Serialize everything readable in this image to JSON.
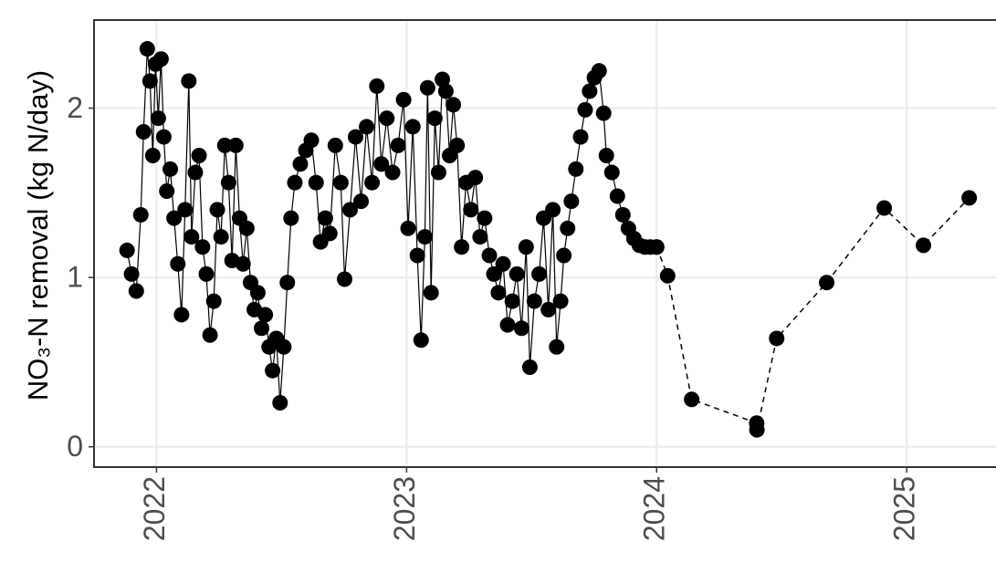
{
  "chart_data": {
    "type": "line",
    "y_label": "NO₃-N removal (kg N/day)",
    "xlim": [
      2021.75,
      2025.39
    ],
    "xticks": [
      2022,
      2023,
      2024,
      2025
    ],
    "ylim": [
      -0.12,
      2.52
    ],
    "yticks": [
      0,
      1,
      2
    ],
    "grid": true,
    "series": [
      {
        "color": "#000000",
        "line_style": "solid",
        "markers": true,
        "x": [
          2021.882,
          2021.9,
          2021.919,
          2021.937,
          2021.948,
          2021.963,
          2021.974,
          2021.985,
          2021.996,
          2022.007,
          2022.018,
          2022.029,
          2022.041,
          2022.055,
          2022.07,
          2022.085,
          2022.1,
          2022.114,
          2022.129,
          2022.14,
          2022.155,
          2022.17,
          2022.184,
          2022.199,
          2022.214,
          2022.229,
          2022.243,
          2022.258,
          2022.273,
          2022.288,
          2022.302,
          2022.317,
          2022.332,
          2022.346,
          2022.361,
          2022.376,
          2022.391,
          2022.405,
          2022.42,
          2022.435,
          2022.45,
          2022.464,
          2022.479,
          2022.494,
          2022.509,
          2022.523,
          2022.538,
          2022.553,
          2022.575,
          2022.597,
          2022.619,
          2022.638,
          2022.656,
          2022.675,
          2022.693,
          2022.715,
          2022.737,
          2022.752,
          2022.774,
          2022.796,
          2022.818,
          2022.84,
          2022.862,
          2022.881,
          2022.899,
          2022.921,
          2022.944,
          2022.966,
          2022.988,
          2023.006,
          2023.025,
          2023.043,
          2023.058,
          2023.073,
          2023.084,
          2023.098,
          2023.113,
          2023.128,
          2023.143,
          2023.157,
          2023.172,
          2023.187,
          2023.202,
          2023.22,
          2023.238,
          2023.257,
          2023.275,
          2023.294,
          2023.312,
          2023.331,
          2023.349,
          2023.367,
          2023.386,
          2023.404,
          2023.423,
          2023.441,
          2023.46,
          2023.478,
          2023.493,
          2023.511,
          2023.53,
          2023.548,
          2023.567,
          2023.585,
          2023.6,
          2023.616,
          2023.629,
          2023.644,
          2023.659,
          2023.677,
          2023.696,
          2023.714,
          2023.732,
          2023.751,
          2023.77,
          2023.788,
          2023.799,
          2023.821,
          2023.843,
          2023.865,
          2023.887,
          2023.909,
          2023.931,
          2023.953,
          2023.975,
          2024.0
        ],
        "values": [
          1.16,
          1.02,
          0.92,
          1.37,
          1.86,
          2.35,
          2.16,
          1.72,
          2.26,
          1.94,
          2.29,
          1.83,
          1.51,
          1.64,
          1.35,
          1.08,
          0.78,
          1.4,
          2.16,
          1.24,
          1.62,
          1.72,
          1.18,
          1.02,
          0.66,
          0.86,
          1.4,
          1.24,
          1.78,
          1.56,
          1.1,
          1.78,
          1.35,
          1.08,
          1.29,
          0.97,
          0.81,
          0.91,
          0.7,
          0.78,
          0.59,
          0.45,
          0.64,
          0.26,
          0.59,
          0.97,
          1.35,
          1.56,
          1.67,
          1.75,
          1.81,
          1.56,
          1.21,
          1.35,
          1.26,
          1.78,
          1.56,
          0.99,
          1.4,
          1.83,
          1.45,
          1.89,
          1.56,
          2.13,
          1.67,
          1.94,
          1.62,
          1.78,
          2.05,
          1.29,
          1.89,
          1.13,
          0.63,
          1.24,
          2.12,
          0.91,
          1.94,
          1.62,
          2.17,
          2.1,
          1.72,
          2.02,
          1.78,
          1.18,
          1.56,
          1.4,
          1.59,
          1.24,
          1.35,
          1.13,
          1.02,
          0.91,
          1.08,
          0.72,
          0.86,
          1.02,
          0.7,
          1.18,
          0.47,
          0.86,
          1.02,
          1.35,
          0.81,
          1.4,
          0.59,
          0.86,
          1.13,
          1.29,
          1.45,
          1.64,
          1.83,
          1.99,
          2.1,
          2.18,
          2.22,
          1.97,
          1.72,
          1.62,
          1.48,
          1.37,
          1.29,
          1.23,
          1.19,
          1.18,
          1.18,
          1.18
        ]
      },
      {
        "color": "#000000",
        "line_style": "dashed",
        "markers": true,
        "x": [
          2024.0,
          2024.044,
          2024.14,
          2024.4,
          2024.401,
          2024.48,
          2024.68,
          2024.91,
          2025.067,
          2025.25
        ],
        "values": [
          1.18,
          1.01,
          0.28,
          0.14,
          0.1,
          0.64,
          0.97,
          1.41,
          1.19,
          1.47
        ]
      }
    ]
  }
}
